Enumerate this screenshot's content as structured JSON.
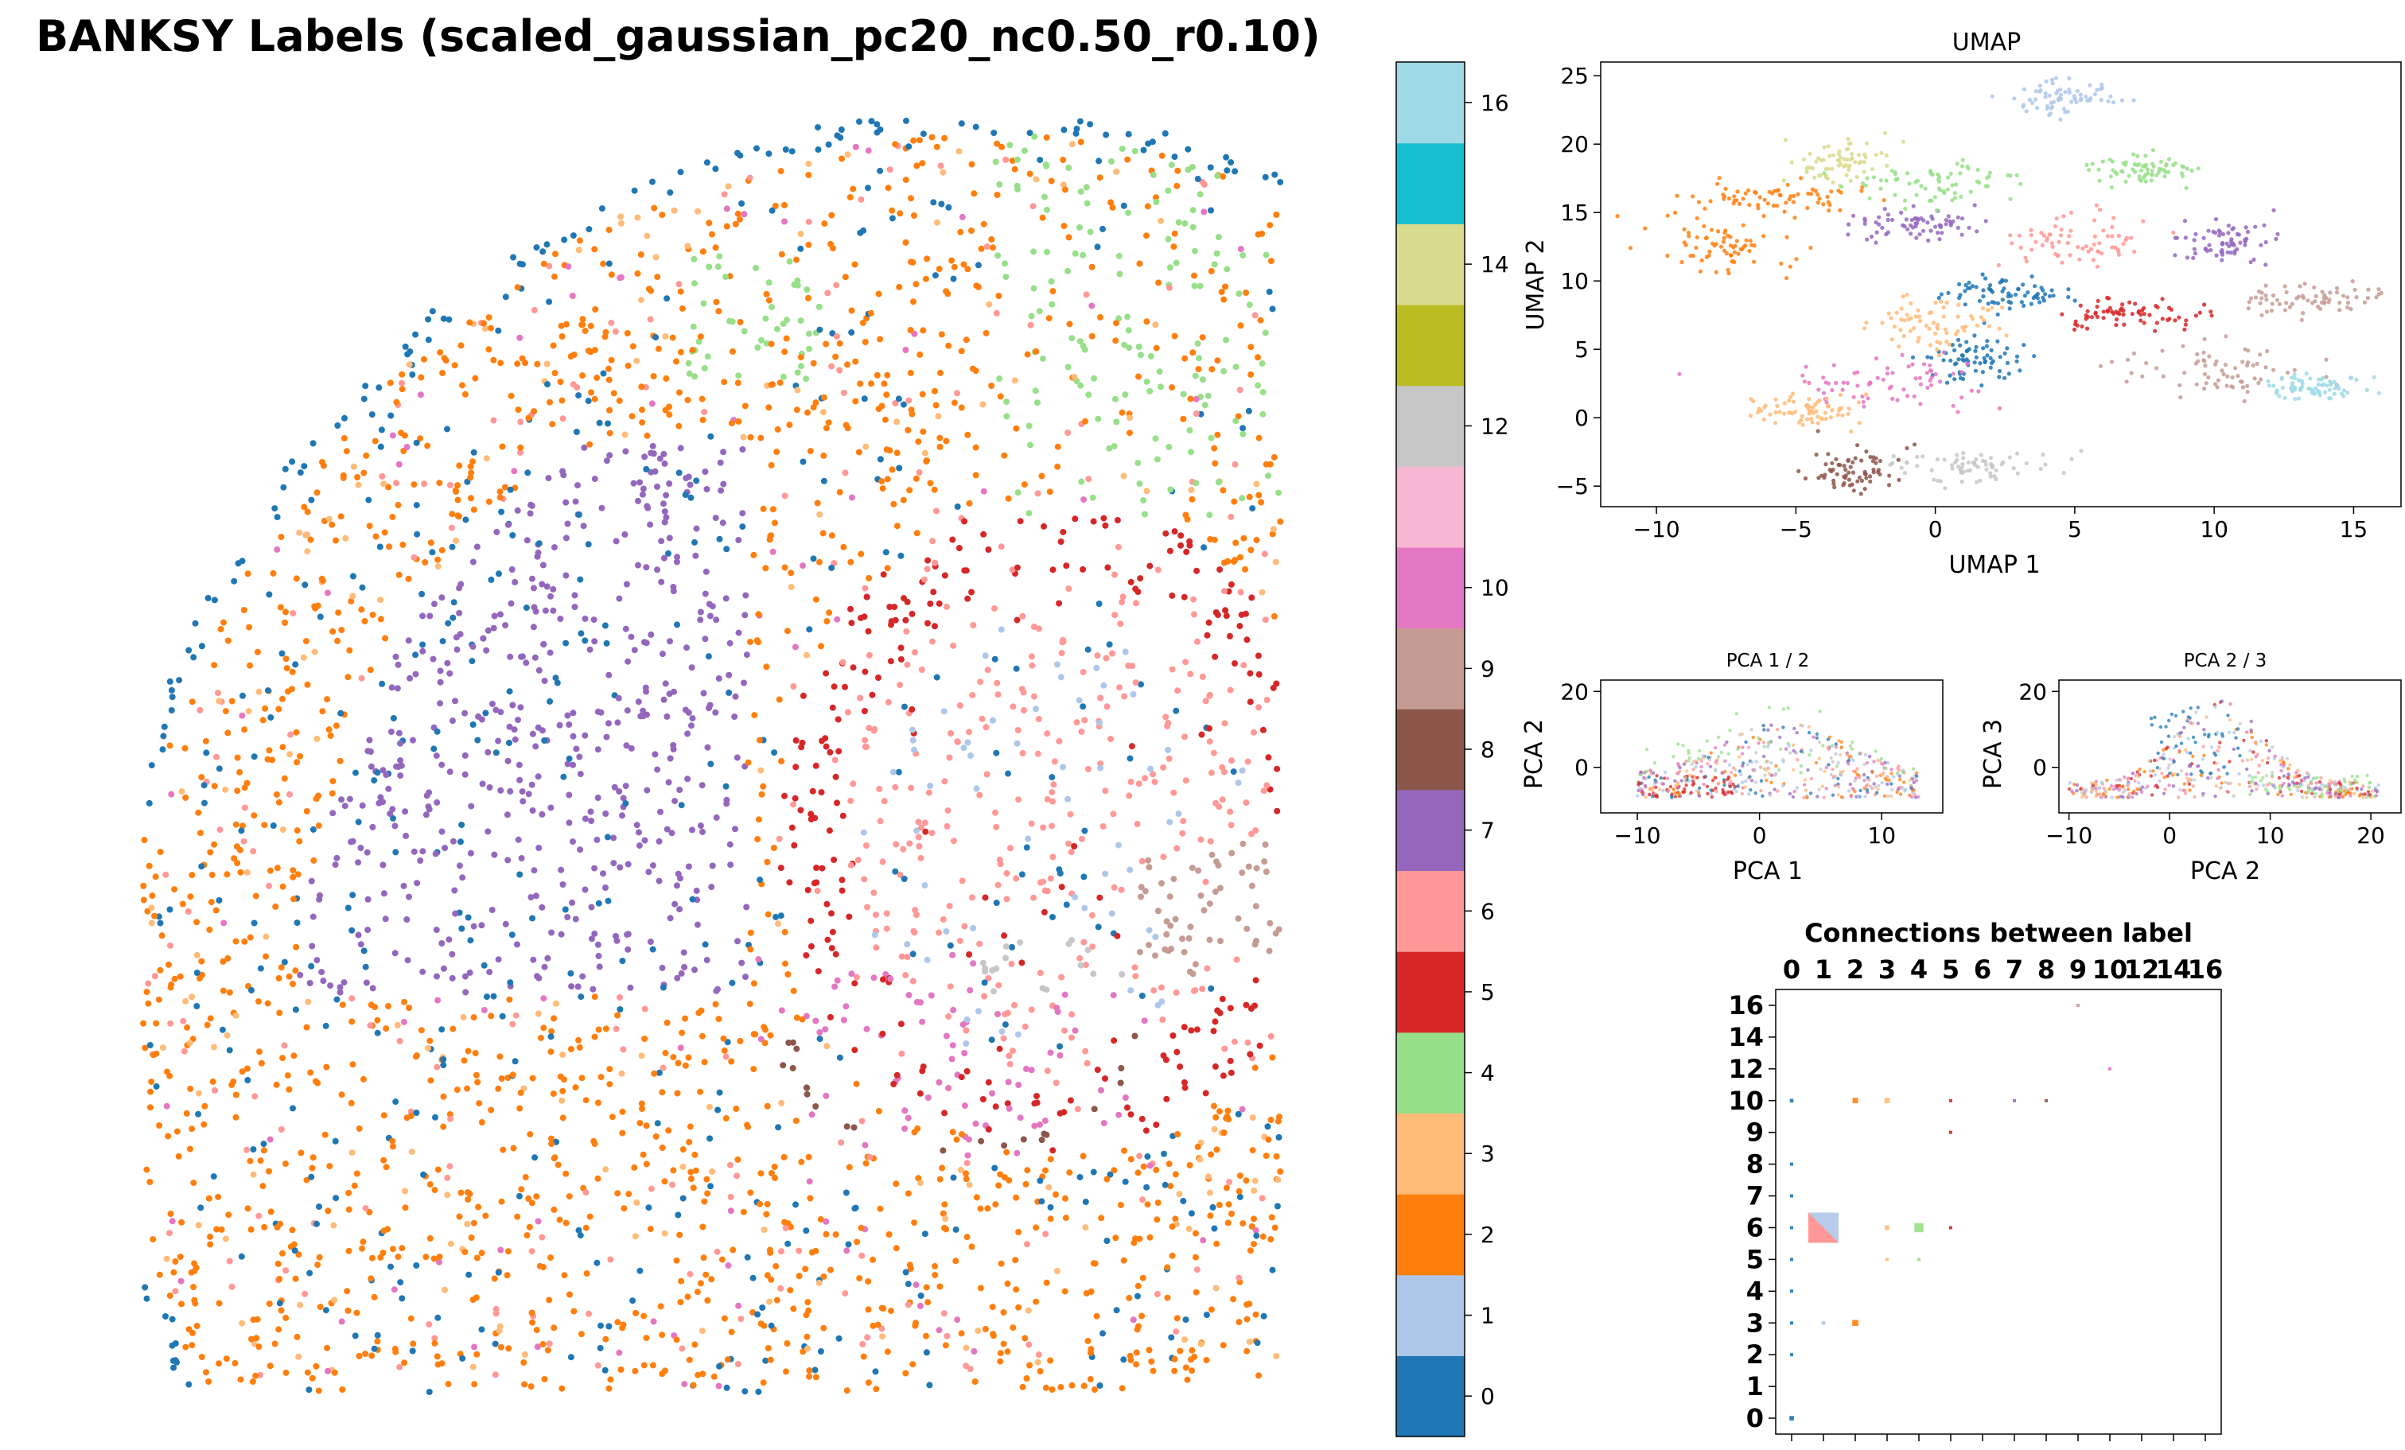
{
  "figure": {
    "title": "BANKSY Labels (scaled_gaussian_pc20_nc0.50_r0.10)"
  },
  "palette": {
    "0": "#1f77b4",
    "1": "#aec7e8",
    "2": "#ff7f0e",
    "3": "#ffbb78",
    "4": "#98df8a",
    "5": "#d62728",
    "6": "#ff9896",
    "7": "#9467bd",
    "8": "#8c564b",
    "9": "#c49c94",
    "10": "#e377c2",
    "11": "#f7b6d2",
    "12": "#c7c7c7",
    "13": "#bcbd22",
    "14": "#dbdb8d",
    "15": "#17becf",
    "16": "#9edae5"
  },
  "chart_data": [
    {
      "id": "spatial",
      "type": "scatter",
      "title": "BANKSY Labels (scaled_gaussian_pc20_nc0.50_r0.10)",
      "description_of_regions": [
        {
          "label": 0,
          "region": "outer boundary cells"
        },
        {
          "label": 2,
          "region": "outer cortex band"
        },
        {
          "label": 7,
          "region": "inner cortical layer (left)"
        },
        {
          "label": 5,
          "region": "band between cortex and center"
        },
        {
          "label": 6,
          "region": "central region"
        },
        {
          "label": 4,
          "region": "upper right region"
        },
        {
          "label": 10,
          "region": "lower central arc"
        },
        {
          "label": 12,
          "region": "lower central streak"
        },
        {
          "label": 8,
          "region": "lower arc line"
        },
        {
          "label": 9,
          "region": "right edge cluster"
        }
      ]
    },
    {
      "id": "colorbar",
      "type": "colorbar",
      "categories": [
        0,
        1,
        2,
        3,
        4,
        5,
        6,
        7,
        8,
        9,
        10,
        11,
        12,
        13,
        14,
        15,
        16
      ],
      "tick_labels": [
        "0",
        "1",
        "2",
        "3",
        "4",
        "5",
        "6",
        "7",
        "8",
        "9",
        "10",
        "12",
        "14",
        "16"
      ]
    },
    {
      "id": "umap",
      "type": "scatter",
      "title": "UMAP",
      "xlabel": "UMAP 1",
      "ylabel": "UMAP 2",
      "xlim": [
        -12.0,
        16.7
      ],
      "ylim": [
        -6.5,
        26.0
      ],
      "xticks": [
        -10,
        -5,
        0,
        5,
        10,
        15
      ],
      "yticks": [
        -5,
        0,
        5,
        10,
        15,
        20,
        25
      ],
      "clusters": [
        {
          "label": 1,
          "cx": 4.6,
          "cy": 23.4
        },
        {
          "label": 2,
          "cx": -8.0,
          "cy": 12.5
        },
        {
          "label": 2,
          "cx": -5.8,
          "cy": 16.0
        },
        {
          "label": 14,
          "cx": -3.5,
          "cy": 18.8
        },
        {
          "label": 7,
          "cx": -1.0,
          "cy": 14.2
        },
        {
          "label": 4,
          "cx": -0.1,
          "cy": 17.2
        },
        {
          "label": 4,
          "cx": 7.5,
          "cy": 18.2
        },
        {
          "label": 6,
          "cx": 5.2,
          "cy": 13.0
        },
        {
          "label": 5,
          "cx": 6.8,
          "cy": 7.5
        },
        {
          "label": 0,
          "cx": 1.5,
          "cy": 4.3
        },
        {
          "label": 0,
          "cx": 2.5,
          "cy": 9.0
        },
        {
          "label": 10,
          "cx": -1.5,
          "cy": 2.5
        },
        {
          "label": 3,
          "cx": -4.7,
          "cy": 0.6
        },
        {
          "label": 3,
          "cx": 0.0,
          "cy": 6.8
        },
        {
          "label": 12,
          "cx": 1.2,
          "cy": -3.5
        },
        {
          "label": 8,
          "cx": -3.0,
          "cy": -3.8
        },
        {
          "label": 9,
          "cx": 13.7,
          "cy": 8.6
        },
        {
          "label": 9,
          "cx": 10.0,
          "cy": 3.6
        },
        {
          "label": 16,
          "cx": 13.6,
          "cy": 2.3
        },
        {
          "label": 7,
          "cx": 10.4,
          "cy": 12.9
        }
      ]
    },
    {
      "id": "pca12",
      "type": "scatter",
      "title": "PCA 1 / 2",
      "xlabel": "PCA 1",
      "ylabel": "PCA 2",
      "xlim": [
        -13,
        15
      ],
      "ylim": [
        -12,
        23
      ],
      "xticks": [
        -10,
        0,
        10
      ],
      "yticks": [
        0,
        20
      ]
    },
    {
      "id": "pca23",
      "type": "scatter",
      "title": "PCA 2 / 3",
      "xlabel": "PCA 2",
      "ylabel": "PCA 3",
      "xlim": [
        -11,
        23
      ],
      "ylim": [
        -12,
        23
      ],
      "xticks": [
        -10,
        0,
        10,
        20
      ],
      "yticks": [
        0,
        20
      ]
    },
    {
      "id": "connections",
      "type": "heatmap",
      "title": "Connections between label",
      "labels": [
        "0",
        "1",
        "2",
        "3",
        "4",
        "5",
        "6",
        "7",
        "8",
        "9",
        "10",
        "12",
        "14",
        "16"
      ],
      "x_tick_labels": [
        "0",
        "1",
        "2",
        "3",
        "4",
        "5",
        "6",
        "7",
        "8",
        "9",
        "10",
        "12",
        "14",
        "16"
      ],
      "y_tick_labels": [
        "0",
        "1",
        "2",
        "3",
        "4",
        "5",
        "6",
        "7",
        "8",
        "9",
        "10",
        "12",
        "14",
        "16"
      ],
      "cells": [
        {
          "row": 0,
          "col": 0,
          "strength": 0.15
        },
        {
          "row": 2,
          "col": 0,
          "strength": 0.08
        },
        {
          "row": 3,
          "col": 0,
          "strength": 0.08
        },
        {
          "row": 3,
          "col": 1,
          "strength": 0.12
        },
        {
          "row": 3,
          "col": 2,
          "strength": 0.2
        },
        {
          "row": 4,
          "col": 0,
          "strength": 0.08
        },
        {
          "row": 5,
          "col": 0,
          "strength": 0.06
        },
        {
          "row": 5,
          "col": 3,
          "strength": 0.08
        },
        {
          "row": 5,
          "col": 4,
          "strength": 0.1
        },
        {
          "row": 6,
          "col": 0,
          "strength": 0.1
        },
        {
          "row": 6,
          "col": 1,
          "strength": 1.0
        },
        {
          "row": 6,
          "col": 3,
          "strength": 0.15
        },
        {
          "row": 6,
          "col": 4,
          "strength": 0.3
        },
        {
          "row": 6,
          "col": 5,
          "strength": 0.08
        },
        {
          "row": 7,
          "col": 0,
          "strength": 0.06
        },
        {
          "row": 8,
          "col": 0,
          "strength": 0.06
        },
        {
          "row": 9,
          "col": 5,
          "strength": 0.06
        },
        {
          "row": 10,
          "col": 0,
          "strength": 0.12
        },
        {
          "row": 10,
          "col": 2,
          "strength": 0.18
        },
        {
          "row": 10,
          "col": 3,
          "strength": 0.18
        },
        {
          "row": 10,
          "col": 5,
          "strength": 0.1
        },
        {
          "row": 10,
          "col": 7,
          "strength": 0.05
        },
        {
          "row": 10,
          "col": 8,
          "strength": 0.05
        },
        {
          "row": 13,
          "col": 9,
          "strength": 0.08
        },
        {
          "row": 12,
          "col": 10,
          "strength": 0.06
        }
      ]
    }
  ]
}
